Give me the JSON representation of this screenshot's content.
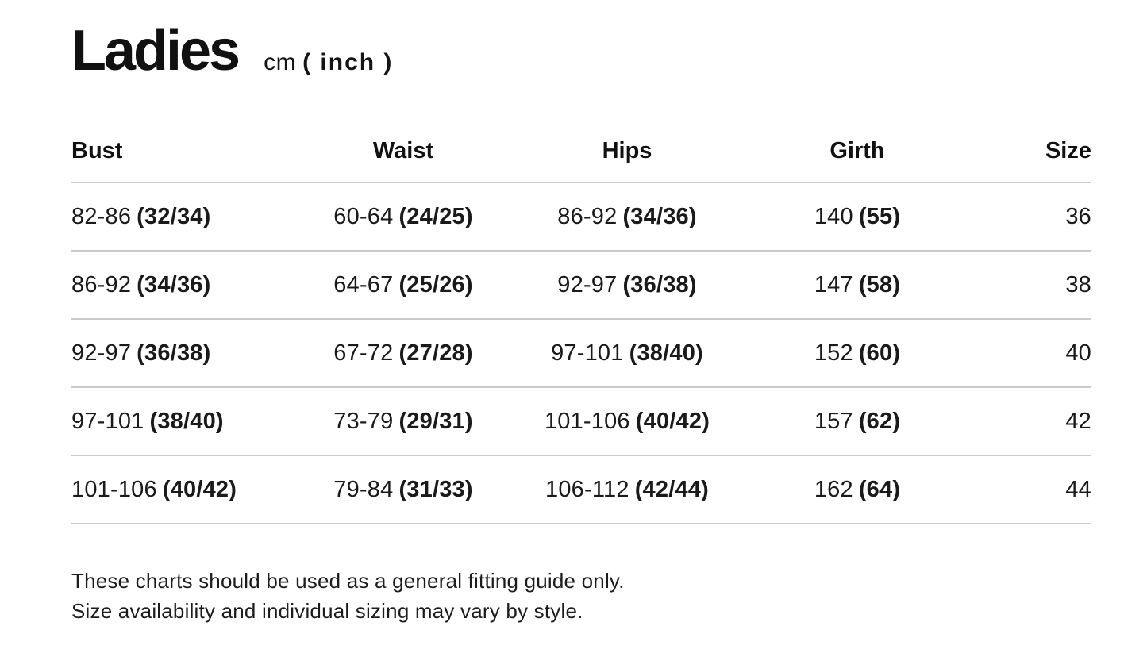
{
  "title": {
    "text": "Ladies",
    "unit_cm": "cm",
    "unit_inch": "( inch )"
  },
  "table": {
    "columns": [
      {
        "label": "Bust"
      },
      {
        "label": "Waist"
      },
      {
        "label": "Hips"
      },
      {
        "label": "Girth"
      },
      {
        "label": "Size"
      }
    ],
    "rows": [
      {
        "bust": {
          "cm": "82-86",
          "inch": "(32/34)"
        },
        "waist": {
          "cm": "60-64",
          "inch": "(24/25)"
        },
        "hips": {
          "cm": "86-92",
          "inch": "(34/36)"
        },
        "girth": {
          "cm": "140",
          "inch": "(55)"
        },
        "size": "36"
      },
      {
        "bust": {
          "cm": "86-92",
          "inch": "(34/36)"
        },
        "waist": {
          "cm": "64-67",
          "inch": "(25/26)"
        },
        "hips": {
          "cm": "92-97",
          "inch": "(36/38)"
        },
        "girth": {
          "cm": "147",
          "inch": "(58)"
        },
        "size": "38"
      },
      {
        "bust": {
          "cm": "92-97",
          "inch": "(36/38)"
        },
        "waist": {
          "cm": "67-72",
          "inch": "(27/28)"
        },
        "hips": {
          "cm": "97-101",
          "inch": "(38/40)"
        },
        "girth": {
          "cm": "152",
          "inch": "(60)"
        },
        "size": "40"
      },
      {
        "bust": {
          "cm": "97-101",
          "inch": "(38/40)"
        },
        "waist": {
          "cm": "73-79",
          "inch": "(29/31)"
        },
        "hips": {
          "cm": "101-106",
          "inch": "(40/42)"
        },
        "girth": {
          "cm": "157",
          "inch": "(62)"
        },
        "size": "42"
      },
      {
        "bust": {
          "cm": "101-106",
          "inch": "(40/42)"
        },
        "waist": {
          "cm": "79-84",
          "inch": "(31/33)"
        },
        "hips": {
          "cm": "106-112",
          "inch": "(42/44)"
        },
        "girth": {
          "cm": "162",
          "inch": "(64)"
        },
        "size": "44"
      }
    ]
  },
  "footnote": {
    "line1": "These charts should be used as a general fitting guide only.",
    "line2": "Size availability and individual sizing may vary by style."
  },
  "colors": {
    "text": "#141414",
    "divider": "#cbcbcb",
    "background": "#ffffff"
  }
}
